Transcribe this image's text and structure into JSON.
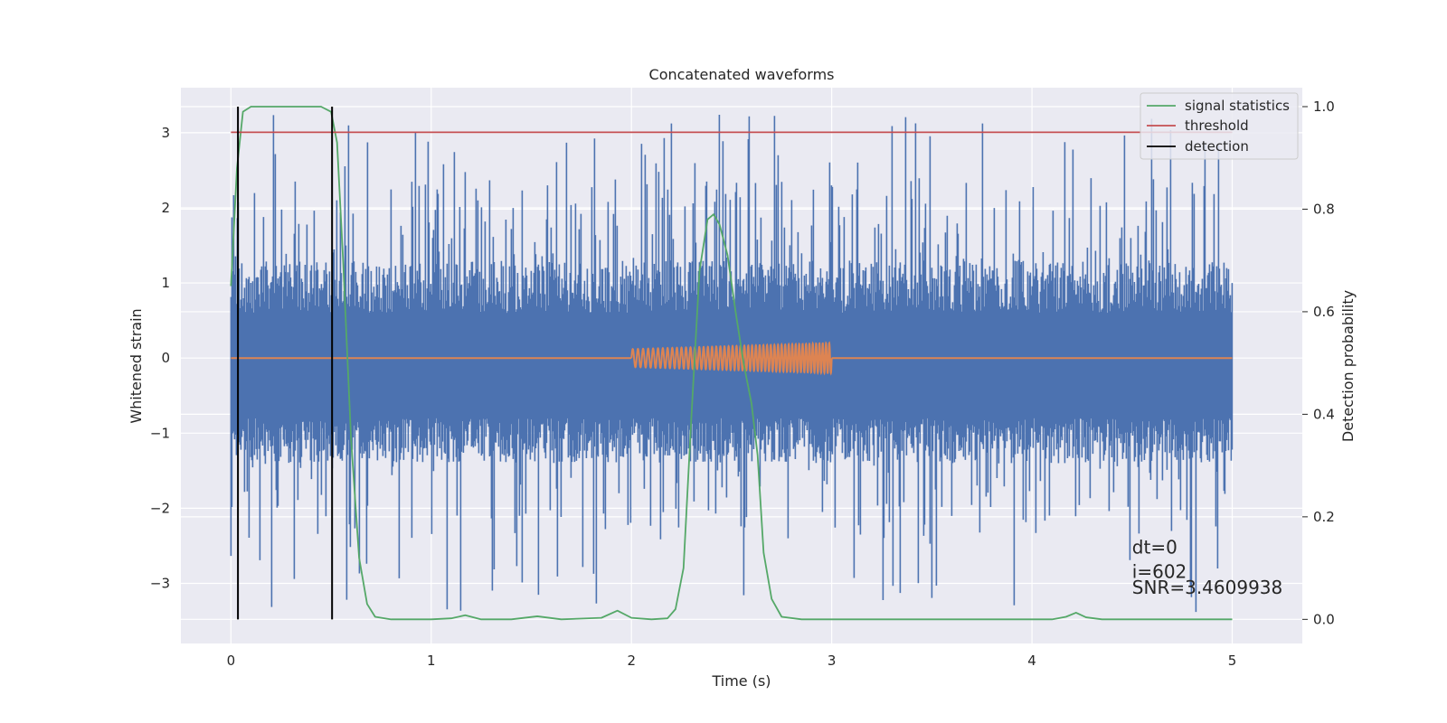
{
  "chart_data": {
    "type": "line",
    "title": "Concatenated waveforms",
    "xlabel": "Time (s)",
    "ylabel_left": "Whitened strain",
    "ylabel_right": "Detection probability",
    "xlim": [
      -0.25,
      5.35
    ],
    "ylim_left": [
      -3.8,
      3.6
    ],
    "ylim_right": [
      -0.047,
      1.037
    ],
    "xticks": [
      0,
      1,
      2,
      3,
      4,
      5
    ],
    "yticks_left": [
      -3,
      -2,
      -1,
      0,
      1,
      2,
      3
    ],
    "yticks_right": [
      0.0,
      0.2,
      0.4,
      0.6,
      0.8,
      1.0
    ],
    "xtick_labels": [
      "0",
      "1",
      "2",
      "3",
      "4",
      "5"
    ],
    "ytick_labels_left": [
      "−3",
      "−2",
      "−1",
      "0",
      "1",
      "2",
      "3"
    ],
    "ytick_labels_right": [
      "0.0",
      "0.2",
      "0.4",
      "0.6",
      "0.8",
      "1.0"
    ],
    "grid": true,
    "legend_position": "top-right",
    "series": [
      {
        "name": "",
        "axis": "left",
        "color": "#4c72b0",
        "kind": "noise",
        "x_range": [
          0,
          5
        ],
        "core_range": [
          -0.8,
          0.6
        ],
        "spike_max": 3.3,
        "spike_min": -3.5
      },
      {
        "name": "",
        "axis": "left",
        "color": "#dd8452",
        "kind": "chirp",
        "x_range": [
          0,
          5
        ],
        "chirp_range": [
          2.0,
          3.0
        ],
        "amp_start": 0.12,
        "amp_end": 0.2
      },
      {
        "name": "signal statistics",
        "axis": "right",
        "color": "#55a868",
        "x": [
          0,
          0.03,
          0.06,
          0.1,
          0.15,
          0.45,
          0.5,
          0.53,
          0.56,
          0.6,
          0.64,
          0.68,
          0.72,
          0.8,
          1.0,
          1.1,
          1.17,
          1.25,
          1.4,
          1.53,
          1.65,
          1.85,
          1.93,
          2.0,
          2.1,
          2.18,
          2.22,
          2.26,
          2.3,
          2.34,
          2.38,
          2.41,
          2.44,
          2.48,
          2.52,
          2.56,
          2.6,
          2.63,
          2.66,
          2.7,
          2.75,
          2.85,
          3.5,
          4.1,
          4.17,
          4.22,
          4.27,
          4.35,
          5.0
        ],
        "y": [
          0.65,
          0.88,
          0.99,
          1.0,
          1.0,
          1.0,
          0.99,
          0.93,
          0.7,
          0.35,
          0.12,
          0.03,
          0.005,
          0.0,
          0.0,
          0.002,
          0.008,
          0.0,
          0.0,
          0.006,
          0.0,
          0.003,
          0.017,
          0.003,
          0.0,
          0.002,
          0.02,
          0.1,
          0.4,
          0.68,
          0.78,
          0.79,
          0.77,
          0.71,
          0.6,
          0.5,
          0.42,
          0.32,
          0.13,
          0.04,
          0.005,
          0.0,
          0.0,
          0.0,
          0.005,
          0.013,
          0.004,
          0.0,
          0.0
        ]
      },
      {
        "name": "threshold",
        "axis": "right",
        "color": "#c44e52",
        "x": [
          0,
          5
        ],
        "y": [
          0.95,
          0.95
        ]
      },
      {
        "name": "detection",
        "axis": "right",
        "color": "#000000",
        "segments": [
          {
            "x": 0.035,
            "y": [
              0,
              1
            ]
          },
          {
            "x": 0.505,
            "y": [
              0,
              1
            ]
          }
        ]
      }
    ],
    "annotations": [
      {
        "text": "dt=0",
        "x": 4.5,
        "y": -2.6
      },
      {
        "text": "i=602",
        "x": 4.5,
        "y": -2.93
      },
      {
        "text": "SNR=3.4609938",
        "x": 4.5,
        "y": -3.14
      }
    ]
  }
}
